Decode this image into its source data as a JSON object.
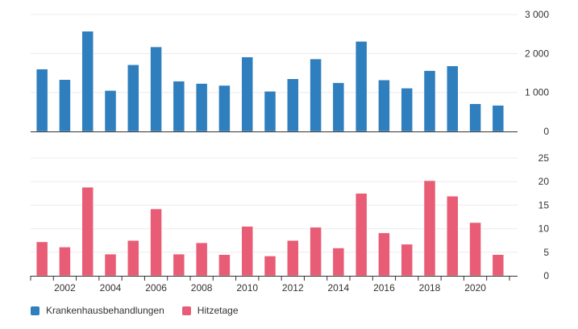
{
  "chart_data": [
    {
      "type": "bar",
      "x": [
        2001,
        2002,
        2003,
        2004,
        2005,
        2006,
        2007,
        2008,
        2009,
        2010,
        2011,
        2012,
        2013,
        2014,
        2015,
        2016,
        2017,
        2018,
        2019,
        2020,
        2021
      ],
      "series": [
        {
          "name": "Krankenhausbehandlungen",
          "color": "#2f7ebd",
          "values": [
            1600,
            1330,
            2570,
            1050,
            1710,
            2170,
            1290,
            1230,
            1180,
            1910,
            1030,
            1350,
            1860,
            1250,
            2310,
            1320,
            1110,
            1560,
            1680,
            710,
            670
          ]
        }
      ],
      "ylim": [
        0,
        3000
      ],
      "yticks": [
        0,
        1000,
        2000,
        3000
      ],
      "ytick_labels": [
        "0",
        "1 000",
        "2 000",
        "3 000"
      ],
      "axis_position": "right",
      "grid": true
    },
    {
      "type": "bar",
      "x": [
        2001,
        2002,
        2003,
        2004,
        2005,
        2006,
        2007,
        2008,
        2009,
        2010,
        2011,
        2012,
        2013,
        2014,
        2015,
        2016,
        2017,
        2018,
        2019,
        2020,
        2021
      ],
      "series": [
        {
          "name": "Hitzetage",
          "color": "#e85d75",
          "values": [
            7.2,
            6.1,
            18.8,
            4.6,
            7.5,
            14.2,
            4.6,
            7.0,
            4.5,
            10.5,
            4.2,
            7.5,
            10.3,
            5.9,
            17.5,
            9.1,
            6.7,
            20.2,
            16.9,
            11.3,
            4.5
          ]
        }
      ],
      "ylim": [
        0,
        25
      ],
      "yticks": [
        0,
        5,
        10,
        15,
        20,
        25
      ],
      "ytick_labels": [
        "0",
        "5",
        "10",
        "15",
        "20",
        "25"
      ],
      "xtick_labels": [
        "2002",
        "2004",
        "2006",
        "2008",
        "2010",
        "2012",
        "2014",
        "2016",
        "2018",
        "2020"
      ],
      "axis_position": "right",
      "grid": true
    }
  ],
  "legend": {
    "items": [
      {
        "label": "Krankenhausbehandlungen",
        "color": "#2f7ebd"
      },
      {
        "label": "Hitzetage",
        "color": "#e85d75"
      }
    ]
  }
}
